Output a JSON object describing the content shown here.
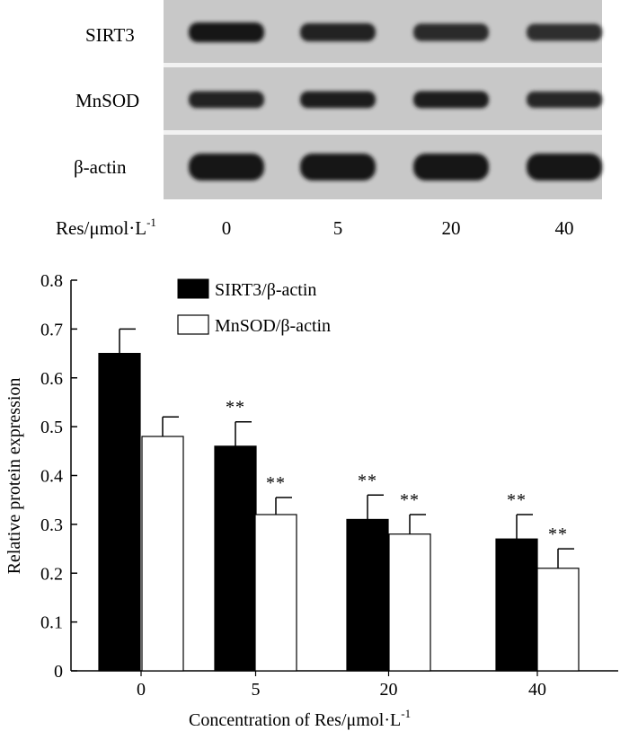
{
  "blot": {
    "rows": [
      {
        "label": "SIRT3",
        "intensities": [
          1.0,
          0.72,
          0.62,
          0.55
        ]
      },
      {
        "label": "MnSOD",
        "intensities": [
          0.78,
          0.8,
          0.85,
          0.7
        ]
      },
      {
        "label": "β-actin",
        "intensities": [
          1.0,
          1.0,
          1.0,
          1.0
        ]
      }
    ],
    "conc_prefix": "Res/μmol·L",
    "conc_sup": "-1",
    "lanes": [
      "0",
      "5",
      "20",
      "40"
    ],
    "colors": {
      "background": "#c9c9c9",
      "band": "#1a1a1a",
      "separator": "#f0f0f0"
    }
  },
  "chart_data": {
    "type": "bar",
    "categories": [
      "0",
      "5",
      "20",
      "40"
    ],
    "series": [
      {
        "name": "SIRT3/β-actin",
        "values": [
          0.65,
          0.46,
          0.31,
          0.27
        ],
        "errors": [
          0.05,
          0.05,
          0.05,
          0.05
        ],
        "fill": "#000000"
      },
      {
        "name": "MnSOD/β-actin",
        "values": [
          0.48,
          0.32,
          0.28,
          0.21
        ],
        "errors": [
          0.04,
          0.035,
          0.04,
          0.04
        ],
        "fill": "#ffffff"
      }
    ],
    "significance": [
      [
        "",
        "**",
        "**",
        "**"
      ],
      [
        "",
        "**",
        "**",
        "**"
      ]
    ],
    "xlabel": "Concentration of Res/μmol·L",
    "xlabel_sup": "-1",
    "ylabel": "Relative protein expression",
    "ylim": [
      0,
      0.8
    ],
    "yticks": [
      "0",
      "0.1",
      "0.2",
      "0.3",
      "0.4",
      "0.5",
      "0.6",
      "0.7",
      "0.8"
    ],
    "legend_position": "top-left",
    "grid": false
  }
}
